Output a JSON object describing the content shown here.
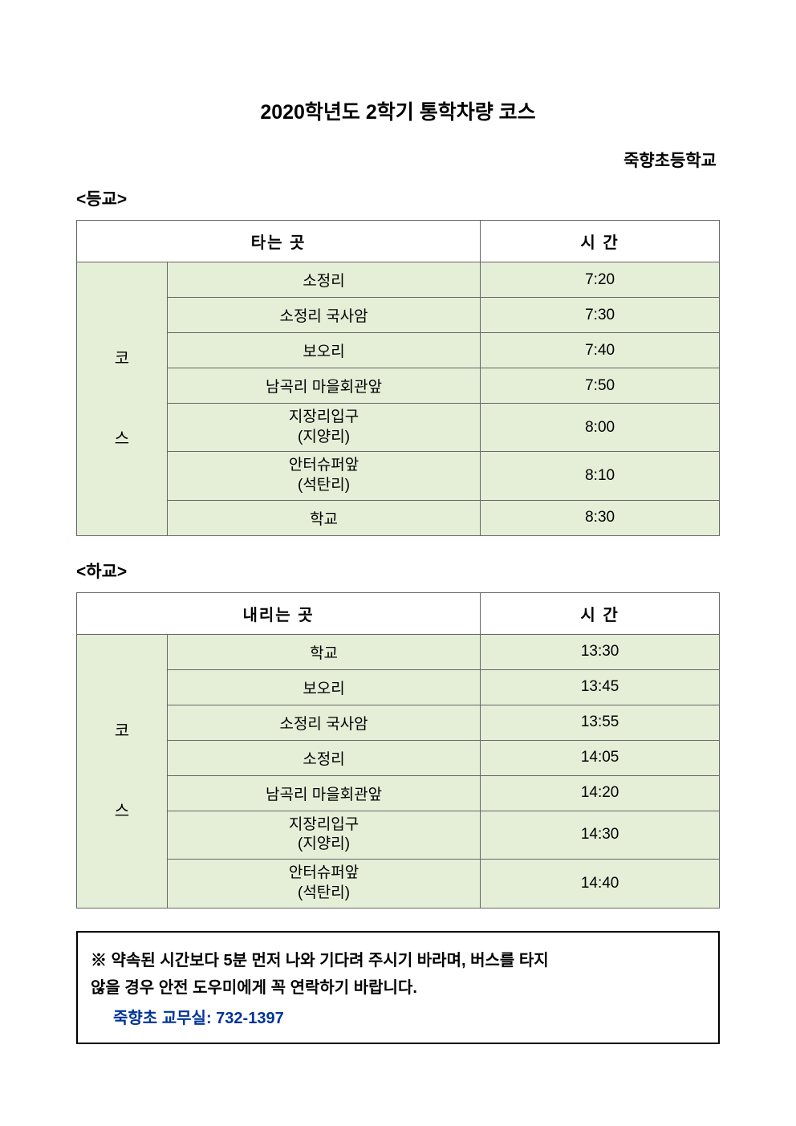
{
  "title": "2020학년도 2학기 통학차량 코스",
  "school": "죽향초등학교",
  "sections": {
    "arrival": {
      "label": "<등교>",
      "headers": {
        "stop": "타는 곳",
        "time": "시 간"
      },
      "course_label_1": "코",
      "course_label_2": "스",
      "rows": [
        {
          "stop": "소정리",
          "stop2": "",
          "time": "7:20"
        },
        {
          "stop": "소정리 국사암",
          "stop2": "",
          "time": "7:30"
        },
        {
          "stop": "보오리",
          "stop2": "",
          "time": "7:40"
        },
        {
          "stop": "남곡리 마을회관앞",
          "stop2": "",
          "time": "7:50"
        },
        {
          "stop": "지장리입구",
          "stop2": "(지양리)",
          "time": "8:00"
        },
        {
          "stop": "안터슈퍼앞",
          "stop2": "(석탄리)",
          "time": "8:10"
        },
        {
          "stop": "학교",
          "stop2": "",
          "time": "8:30"
        }
      ]
    },
    "departure": {
      "label": "<하교>",
      "headers": {
        "stop": "내리는 곳",
        "time": "시 간"
      },
      "course_label_1": "코",
      "course_label_2": "스",
      "rows": [
        {
          "stop": "학교",
          "stop2": "",
          "time": "13:30"
        },
        {
          "stop": "보오리",
          "stop2": "",
          "time": "13:45"
        },
        {
          "stop": "소정리 국사암",
          "stop2": "",
          "time": "13:55"
        },
        {
          "stop": "소정리",
          "stop2": "",
          "time": "14:05"
        },
        {
          "stop": "남곡리 마을회관앞",
          "stop2": "",
          "time": "14:20"
        },
        {
          "stop": "지장리입구",
          "stop2": "(지양리)",
          "time": "14:30"
        },
        {
          "stop": "안터슈퍼앞",
          "stop2": "(석탄리)",
          "time": "14:40"
        }
      ]
    }
  },
  "notice": {
    "line1": "※ 약속된 시간보다 5분 먼저 나와 기다려 주시기 바라며, 버스를 타지",
    "line2": "않을 경우 안전 도우미에게 꼭 연락하기 바랍니다.",
    "contact": "죽향초 교무실: 732-1397"
  },
  "style": {
    "cell_bg": "#e5efd8",
    "header_bg": "#ffffff",
    "border_color": "#666666",
    "contact_color": "#003399"
  }
}
